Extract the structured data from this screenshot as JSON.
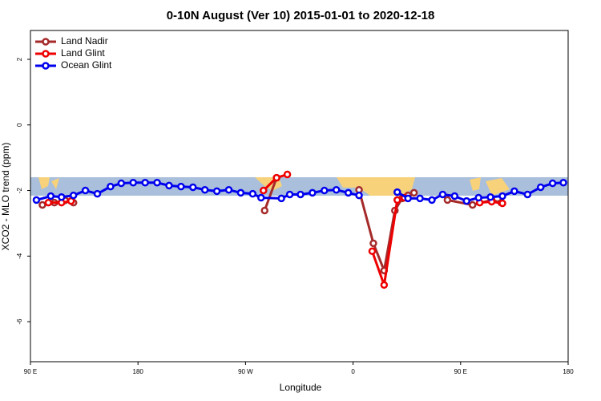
{
  "chart_data": {
    "type": "line",
    "title": "0-10N August (Ver 10)   2015-01-01 to 2020-12-18",
    "x_label": "Longitude",
    "y_label": "XCO2 - MLO trend (ppm)",
    "xlim": [
      90,
      540
    ],
    "xticks": [
      {
        "value": 90,
        "label": "90 E"
      },
      {
        "value": 180,
        "label": "180"
      },
      {
        "value": 270,
        "label": "90 W"
      },
      {
        "value": 360,
        "label": "0"
      },
      {
        "value": 450,
        "label": "90 E"
      },
      {
        "value": 540,
        "label": "180"
      }
    ],
    "ylim": [
      -7.22,
      2.88
    ],
    "yticks": [
      2,
      0,
      -2,
      -4,
      -6
    ],
    "legend": "top-left",
    "series": [
      {
        "name": "Land Nadir",
        "color": "#a52a2a",
        "x": [
          100,
          110,
          119,
          126,
          null,
          286,
          296,
          null,
          365,
          377,
          386,
          395,
          401,
          406,
          411,
          null,
          439,
          460,
          476,
          484
        ],
        "values": [
          -2.44,
          -2.37,
          -2.3,
          -2.37,
          null,
          -2.61,
          -1.61,
          null,
          -1.98,
          -3.61,
          -4.44,
          -2.61,
          -2.24,
          -2.15,
          -2.07,
          null,
          -2.29,
          -2.44,
          -2.29,
          -2.37
        ]
      },
      {
        "name": "Land Glint",
        "color": "#ee0000",
        "x": [
          105,
          116,
          124,
          null,
          285,
          296,
          305,
          null,
          376,
          386,
          397,
          403,
          null,
          466,
          476,
          485
        ],
        "values": [
          -2.37,
          -2.37,
          -2.32,
          null,
          -2.0,
          -1.61,
          -1.51,
          null,
          -3.85,
          -4.88,
          -2.29,
          -2.22,
          null,
          -2.37,
          -2.34,
          -2.39
        ]
      },
      {
        "name": "Ocean Glint",
        "color": "#0000ee",
        "x": [
          95,
          107,
          116,
          126,
          136,
          146,
          157,
          166,
          176,
          186,
          196,
          206,
          216,
          226,
          236,
          246,
          256,
          266,
          276,
          283,
          300,
          307,
          316,
          326,
          336,
          346,
          356,
          365,
          null,
          397,
          406,
          416,
          426,
          435,
          445,
          455,
          465,
          475,
          485,
          495,
          506,
          517,
          527,
          536
        ],
        "values": [
          -2.29,
          -2.17,
          -2.2,
          -2.15,
          -2.0,
          -2.1,
          -1.88,
          -1.78,
          -1.76,
          -1.76,
          -1.76,
          -1.85,
          -1.88,
          -1.9,
          -1.98,
          -2.02,
          -1.98,
          -2.07,
          -2.1,
          -2.22,
          -2.24,
          -2.12,
          -2.12,
          -2.07,
          -2.0,
          -1.98,
          -2.07,
          -2.15,
          null,
          -2.05,
          -2.24,
          -2.24,
          -2.29,
          -2.12,
          -2.17,
          -2.32,
          -2.22,
          -2.2,
          -2.17,
          -2.02,
          -2.12,
          -1.9,
          -1.78,
          -1.76
        ]
      }
    ]
  }
}
